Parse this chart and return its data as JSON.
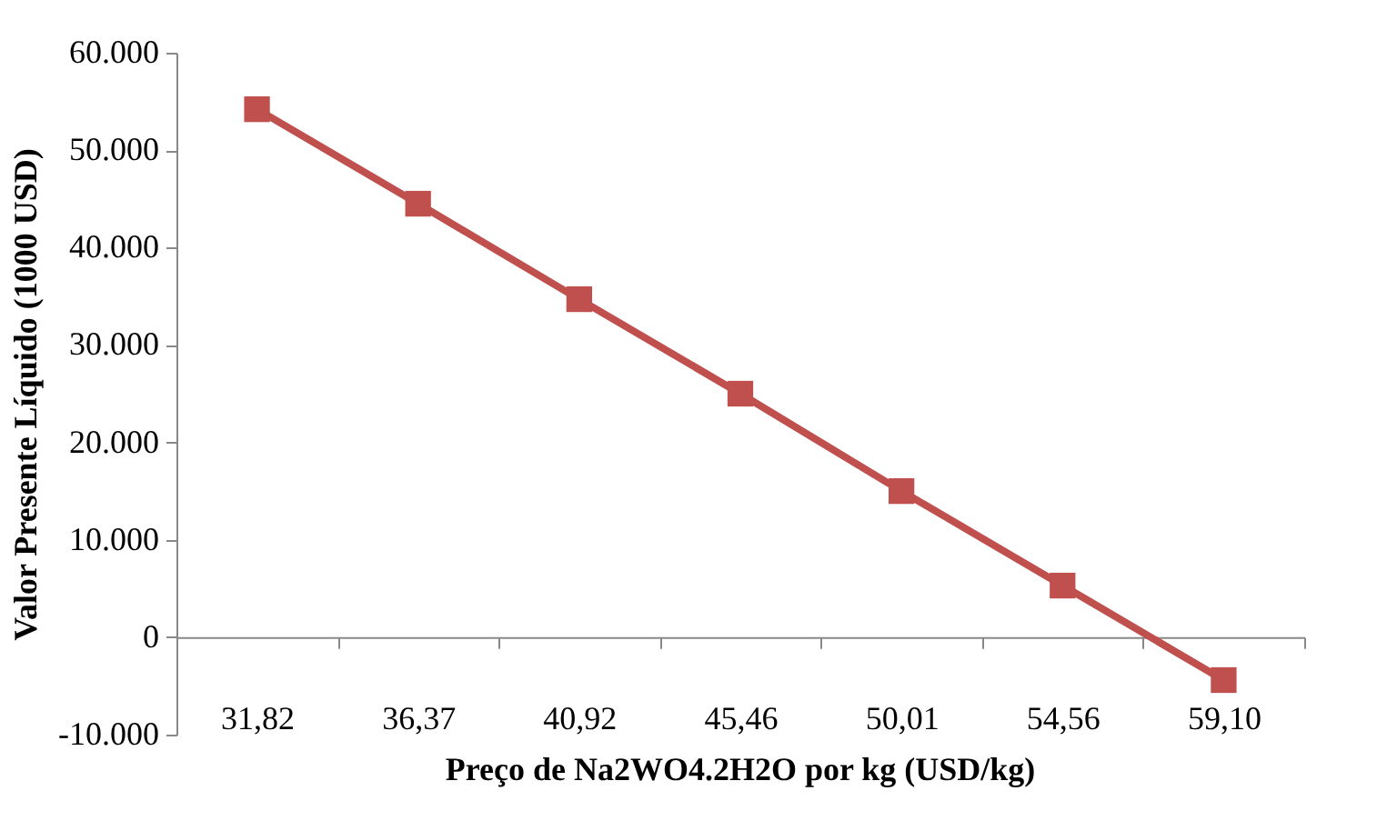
{
  "chart_data": {
    "type": "line",
    "xlabel": "Preço de Na2WO4.2H2O por kg  (USD/kg)",
    "ylabel": "Valor Presente Líquido (1000 USD)",
    "categories": [
      "31,82",
      "36,37",
      "40,92",
      "45,46",
      "50,01",
      "54,56",
      "59,10"
    ],
    "series": [
      {
        "color": "#c0504d",
        "values": [
          54200,
          44500,
          34700,
          25000,
          15000,
          5300,
          -4400
        ]
      }
    ],
    "ylim": [
      -10000,
      60000
    ],
    "yticks": [
      {
        "value": -10000,
        "label": "-10.000"
      },
      0,
      {
        "value": 10000,
        "label": "10.000"
      },
      {
        "value": 20000,
        "label": "20.000"
      },
      {
        "value": 30000,
        "label": "30.000"
      },
      {
        "value": 40000,
        "label": "40.000"
      },
      {
        "value": 50000,
        "label": "50.000"
      },
      {
        "value": 60000,
        "label": "60.000"
      }
    ],
    "marker": "square",
    "line_style": "solid"
  }
}
